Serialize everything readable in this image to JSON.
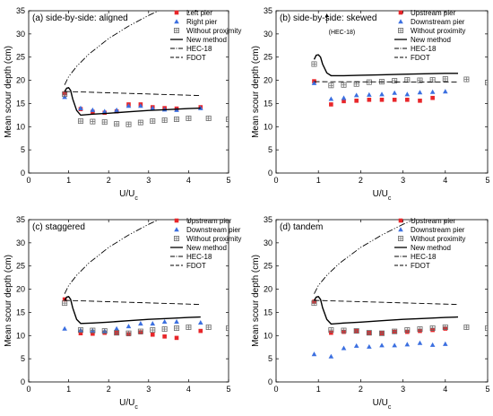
{
  "chart_data": [
    {
      "type": "scatter",
      "title": "(a) side-by-side: aligned",
      "xlabel": "U/U",
      "xlabel_sub": "c",
      "ylabel": "Mean scour depth (cm)",
      "xlim": [
        0,
        5
      ],
      "ylim": [
        0,
        35
      ],
      "xticks": [
        0,
        1,
        2,
        3,
        4,
        5
      ],
      "yticks": [
        0,
        5,
        10,
        15,
        20,
        25,
        30,
        35
      ],
      "legend_position": "top-right",
      "series": [
        {
          "name": "Left pier",
          "marker": "square",
          "color": "#e8262a",
          "x": [
            0.9,
            1.3,
            1.6,
            1.9,
            2.2,
            2.5,
            2.8,
            3.1,
            3.4,
            3.7,
            4.3
          ],
          "y": [
            17.2,
            13.8,
            13.2,
            13.0,
            13.3,
            14.8,
            14.8,
            14.2,
            14.0,
            13.9,
            14.2
          ]
        },
        {
          "name": "Right pier",
          "marker": "triangle",
          "color": "#3b6fe0",
          "x": [
            0.9,
            1.3,
            1.6,
            1.9,
            2.2,
            2.5,
            2.8,
            3.1,
            3.4,
            3.7,
            4.3
          ],
          "y": [
            16.4,
            14.0,
            13.6,
            13.3,
            13.6,
            14.5,
            14.5,
            14.0,
            13.7,
            13.6,
            14.0
          ]
        },
        {
          "name": "Without proximity",
          "marker": "boxplus",
          "color": "#6b6b6b",
          "x": [
            0.9,
            1.3,
            1.6,
            1.9,
            2.2,
            2.5,
            2.8,
            3.1,
            3.4,
            3.7,
            4.0,
            4.5,
            5.0
          ],
          "y": [
            17.0,
            11.2,
            11.1,
            11.0,
            10.6,
            10.5,
            10.9,
            11.2,
            11.4,
            11.6,
            11.8,
            11.8,
            11.6
          ]
        },
        {
          "name": "New method",
          "line": "solid",
          "x": [
            0.9,
            0.95,
            1.0,
            1.05,
            1.1,
            1.2,
            1.3,
            1.6,
            2.0,
            2.5,
            3.0,
            3.5,
            4.0,
            4.3
          ],
          "y": [
            17.6,
            18.3,
            18.4,
            17.8,
            16.0,
            13.5,
            12.5,
            12.7,
            12.9,
            13.2,
            13.5,
            13.7,
            13.9,
            14.0
          ]
        },
        {
          "name": "HEC-18",
          "line": "dashdotdot",
          "x": [
            0.9,
            1.0,
            1.2,
            1.5,
            2.0,
            2.5,
            3.0,
            3.25
          ],
          "y": [
            19.0,
            20.8,
            23.0,
            25.6,
            29.0,
            31.7,
            34.0,
            35.0
          ]
        },
        {
          "name": "FDOT",
          "line": "dashed",
          "x": [
            0.9,
            4.3
          ],
          "y": [
            17.6,
            16.7
          ]
        }
      ]
    },
    {
      "type": "scatter",
      "title": "(b) side-by-side: skewed",
      "annotation": "(HEC-18)",
      "xlabel": "U/U",
      "xlabel_sub": "c",
      "ylabel": "Mean scour depth (cm)",
      "xlim": [
        0,
        5
      ],
      "ylim": [
        0,
        35
      ],
      "xticks": [
        0,
        1,
        2,
        3,
        4,
        5
      ],
      "yticks": [
        0,
        5,
        10,
        15,
        20,
        25,
        30,
        35
      ],
      "legend_position": "top-right",
      "series": [
        {
          "name": "Upstream pier",
          "marker": "square",
          "color": "#e8262a",
          "x": [
            0.9,
            1.3,
            1.6,
            1.9,
            2.2,
            2.5,
            2.8,
            3.1,
            3.4,
            3.7
          ],
          "y": [
            19.8,
            14.8,
            15.5,
            15.6,
            15.8,
            15.8,
            15.8,
            15.8,
            15.6,
            16.2
          ]
        },
        {
          "name": "Downstream pier",
          "marker": "triangle",
          "color": "#3b6fe0",
          "x": [
            0.9,
            1.3,
            1.6,
            1.9,
            2.2,
            2.5,
            2.8,
            3.1,
            3.4,
            3.7,
            4.0
          ],
          "y": [
            19.4,
            16.0,
            16.2,
            16.8,
            16.9,
            17.0,
            17.3,
            17.0,
            17.4,
            17.5,
            17.6
          ]
        },
        {
          "name": "Without proximity",
          "marker": "boxplus",
          "color": "#6b6b6b",
          "x": [
            0.9,
            1.3,
            1.6,
            1.9,
            2.2,
            2.5,
            2.8,
            3.1,
            3.4,
            3.7,
            4.0,
            4.5,
            5.0
          ],
          "y": [
            23.5,
            18.9,
            19.0,
            19.2,
            19.6,
            19.7,
            19.9,
            20.1,
            20.0,
            20.1,
            20.3,
            20.2,
            19.5
          ]
        },
        {
          "name": "New method",
          "line": "solid",
          "x": [
            0.9,
            0.95,
            1.0,
            1.05,
            1.1,
            1.2,
            1.3,
            1.6,
            2.0,
            2.5,
            3.0,
            3.5,
            4.0,
            4.3
          ],
          "y": [
            24.5,
            25.4,
            25.5,
            25.0,
            23.5,
            21.6,
            21.0,
            21.0,
            21.1,
            21.2,
            21.3,
            21.4,
            21.5,
            21.5
          ]
        },
        {
          "name": "HEC-18",
          "line": "dashdotdot",
          "x": [],
          "y": []
        },
        {
          "name": "FDOT",
          "line": "dashed",
          "x": [
            0.9,
            4.3
          ],
          "y": [
            19.7,
            19.6
          ]
        }
      ]
    },
    {
      "type": "scatter",
      "title": "(c) staggered",
      "xlabel": "U/U",
      "xlabel_sub": "c",
      "ylabel": "Mean scour depth (cm)",
      "xlim": [
        0,
        5
      ],
      "ylim": [
        0,
        35
      ],
      "xticks": [
        0,
        1,
        2,
        3,
        4,
        5
      ],
      "yticks": [
        0,
        5,
        10,
        15,
        20,
        25,
        30,
        35
      ],
      "legend_position": "top-right",
      "series": [
        {
          "name": "Upstream pier",
          "marker": "square",
          "color": "#e8262a",
          "x": [
            0.9,
            1.3,
            1.6,
            1.9,
            2.2,
            2.5,
            2.8,
            3.1,
            3.4,
            3.7,
            4.3
          ],
          "y": [
            17.8,
            10.5,
            10.4,
            10.6,
            10.6,
            10.3,
            10.7,
            10.2,
            9.8,
            9.5,
            11.0
          ]
        },
        {
          "name": "Downstream pier",
          "marker": "triangle",
          "color": "#3b6fe0",
          "x": [
            0.9,
            1.3,
            1.6,
            1.9,
            2.2,
            2.5,
            2.8,
            3.1,
            3.4,
            3.7,
            4.3
          ],
          "y": [
            11.5,
            11.2,
            11.1,
            11.0,
            11.5,
            12.0,
            12.6,
            12.6,
            13.0,
            13.0,
            12.8
          ]
        },
        {
          "name": "Without proximity",
          "marker": "boxplus",
          "color": "#6b6b6b",
          "x": [
            0.9,
            1.3,
            1.6,
            1.9,
            2.2,
            2.5,
            2.8,
            3.1,
            3.4,
            3.7,
            4.0,
            4.5,
            5.0
          ],
          "y": [
            17.0,
            11.2,
            11.1,
            11.0,
            10.6,
            10.5,
            10.9,
            11.2,
            11.4,
            11.6,
            11.8,
            11.8,
            11.6
          ]
        },
        {
          "name": "New method",
          "line": "solid",
          "x": [
            0.9,
            0.95,
            1.0,
            1.05,
            1.1,
            1.2,
            1.3,
            1.6,
            2.0,
            2.5,
            3.0,
            3.5,
            4.0,
            4.3
          ],
          "y": [
            17.6,
            18.3,
            18.4,
            17.8,
            16.0,
            13.5,
            12.6,
            12.7,
            12.9,
            13.2,
            13.5,
            13.7,
            13.9,
            14.0
          ]
        },
        {
          "name": "HEC-18",
          "line": "dashdotdot",
          "x": [
            0.9,
            1.0,
            1.2,
            1.5,
            2.0,
            2.5,
            3.0,
            3.25
          ],
          "y": [
            19.0,
            20.8,
            23.0,
            25.6,
            29.0,
            31.7,
            34.0,
            35.0
          ]
        },
        {
          "name": "FDOT",
          "line": "dashed",
          "x": [
            0.9,
            4.3
          ],
          "y": [
            17.6,
            16.7
          ]
        }
      ]
    },
    {
      "type": "scatter",
      "title": "(d) tandem",
      "xlabel": "U/U",
      "xlabel_sub": "c",
      "ylabel": "Mean scour depth (cm)",
      "xlim": [
        0,
        5
      ],
      "ylim": [
        0,
        35
      ],
      "xticks": [
        0,
        1,
        2,
        3,
        4,
        5
      ],
      "yticks": [
        0,
        5,
        10,
        15,
        20,
        25,
        30,
        35
      ],
      "legend_position": "top-right",
      "series": [
        {
          "name": "Upstream pier",
          "marker": "square",
          "color": "#e8262a",
          "x": [
            0.9,
            1.3,
            1.6,
            1.9,
            2.2,
            2.5,
            2.8,
            3.1,
            3.4,
            3.7,
            4.0
          ],
          "y": [
            17.3,
            10.6,
            10.8,
            11.0,
            10.6,
            10.5,
            10.8,
            10.8,
            11.0,
            11.2,
            11.5
          ]
        },
        {
          "name": "Downstream pier",
          "marker": "triangle",
          "color": "#3b6fe0",
          "x": [
            0.9,
            1.3,
            1.6,
            1.9,
            2.2,
            2.5,
            2.8,
            3.1,
            3.4,
            3.7,
            4.0
          ],
          "y": [
            6.0,
            5.5,
            7.3,
            7.8,
            7.6,
            7.9,
            7.9,
            8.1,
            8.4,
            8.0,
            8.2
          ]
        },
        {
          "name": "Without proximity",
          "marker": "boxplus",
          "color": "#6b6b6b",
          "x": [
            0.9,
            1.3,
            1.6,
            1.9,
            2.2,
            2.5,
            2.8,
            3.1,
            3.4,
            3.7,
            4.0,
            4.5,
            5.0
          ],
          "y": [
            17.0,
            11.2,
            11.1,
            11.0,
            10.6,
            10.5,
            10.9,
            11.2,
            11.4,
            11.6,
            11.8,
            11.8,
            11.6
          ]
        },
        {
          "name": "New method",
          "line": "solid",
          "x": [
            0.9,
            0.95,
            1.0,
            1.05,
            1.1,
            1.2,
            1.3,
            1.6,
            2.0,
            2.5,
            3.0,
            3.5,
            4.0,
            4.3
          ],
          "y": [
            17.6,
            18.3,
            18.4,
            17.8,
            16.0,
            13.5,
            12.5,
            12.7,
            12.9,
            13.2,
            13.5,
            13.7,
            13.9,
            14.0
          ]
        },
        {
          "name": "HEC-18",
          "line": "dashdotdot",
          "x": [
            0.9,
            1.0,
            1.2,
            1.5,
            2.0,
            2.5,
            3.0,
            3.25
          ],
          "y": [
            19.0,
            20.8,
            23.0,
            25.6,
            29.0,
            31.7,
            34.0,
            35.0
          ]
        },
        {
          "name": "FDOT",
          "line": "dashed",
          "x": [
            0.9,
            4.3
          ],
          "y": [
            17.6,
            16.7
          ]
        }
      ]
    }
  ]
}
